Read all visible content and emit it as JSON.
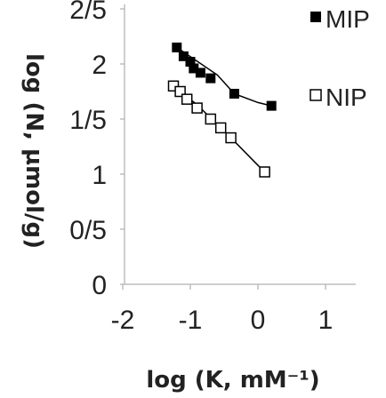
{
  "chart_data": {
    "type": "scatter",
    "title": "",
    "xlabel": "log (K, mM⁻¹)",
    "ylabel": "log (N, µmol/g)",
    "xlim": [
      -2,
      1
    ],
    "ylim": [
      0,
      0.4
    ],
    "x_ticks": [
      {
        "value": -2,
        "label": "-2"
      },
      {
        "value": -1,
        "label": "-1"
      },
      {
        "value": 0,
        "label": "0"
      },
      {
        "value": 1,
        "label": "1"
      }
    ],
    "y_ticks": [
      {
        "value": 0,
        "label": "0"
      },
      {
        "value": 0.05,
        "label": "0/5"
      },
      {
        "value": 0.1,
        "label": "1"
      },
      {
        "value": 0.15,
        "label": "1/5"
      },
      {
        "value": 0.2,
        "label": "2"
      },
      {
        "value": 0.25,
        "label": "2/5"
      }
    ],
    "legend_position": "top-right",
    "series": [
      {
        "name": "MIP",
        "marker": "filled-square",
        "color": "#000000",
        "x": [
          -1.2,
          -1.1,
          -1.0,
          -0.95,
          -0.85,
          -0.7,
          -0.35,
          0.2
        ],
        "y": [
          0.215,
          0.207,
          0.202,
          0.196,
          0.192,
          0.187,
          0.173,
          0.162
        ],
        "fit_line": [
          [
            -1.2,
            0.215
          ],
          [
            -0.6,
            0.19
          ],
          [
            -0.35,
            0.173
          ],
          [
            0.0,
            0.165
          ],
          [
            0.2,
            0.162
          ]
        ]
      },
      {
        "name": "NIP",
        "marker": "open-square",
        "color": "#000000",
        "x": [
          -1.25,
          -1.15,
          -1.05,
          -0.9,
          -0.7,
          -0.55,
          -0.4,
          0.1
        ],
        "y": [
          0.18,
          0.175,
          0.168,
          0.16,
          0.15,
          0.142,
          0.133,
          0.102
        ],
        "fit_line": [
          [
            -1.25,
            0.18
          ],
          [
            -0.9,
            0.163
          ],
          [
            -0.4,
            0.133
          ],
          [
            0.0,
            0.108
          ],
          [
            0.1,
            0.102
          ]
        ]
      }
    ]
  }
}
